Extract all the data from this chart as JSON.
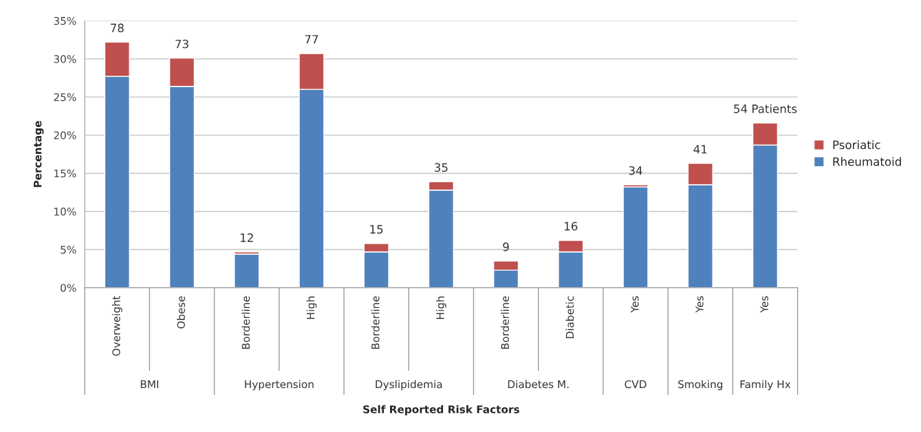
{
  "chart_data": {
    "type": "bar",
    "stacked": true,
    "categories": [
      "Overweight",
      "Obese",
      "Borderline",
      "High",
      "Borderline",
      "High",
      "Borderline",
      "Diabetic",
      "Yes",
      "Yes",
      "Yes"
    ],
    "series": [
      {
        "name": "Rheumatoid",
        "color": "#4f81bd",
        "values": [
          27.7,
          26.4,
          4.4,
          26.0,
          4.7,
          12.8,
          2.3,
          4.7,
          13.2,
          13.5,
          18.7
        ]
      },
      {
        "name": "Psoriatic",
        "color": "#c0504d",
        "values": [
          4.5,
          3.7,
          0.3,
          4.7,
          1.1,
          1.1,
          1.2,
          1.5,
          0.3,
          2.8,
          2.9
        ]
      }
    ],
    "annotations": [
      "BMI",
      "Hypertension",
      "Dyslipidemia",
      "Diabetes M.",
      "CVD",
      "Smoking",
      "Family Hx",
      "78",
      "73",
      "12",
      "77",
      "15",
      "35",
      "9",
      "16",
      "34",
      "41",
      "54 Patients"
    ],
    "xlabel": "Self Reported Risk Factors",
    "ylabel": "Percentage",
    "ylim": [
      0,
      35
    ],
    "yticks": [
      {
        "value": 0,
        "label": "0%"
      },
      {
        "value": 5,
        "label": "5%"
      },
      {
        "value": 10,
        "label": "10%"
      },
      {
        "value": 15,
        "label": "15%"
      },
      {
        "value": 20,
        "label": "20%"
      },
      {
        "value": 25,
        "label": "25%"
      },
      {
        "value": 30,
        "label": "30%"
      },
      {
        "value": 35,
        "label": "35%"
      }
    ],
    "grid": "y",
    "legend": "right"
  }
}
